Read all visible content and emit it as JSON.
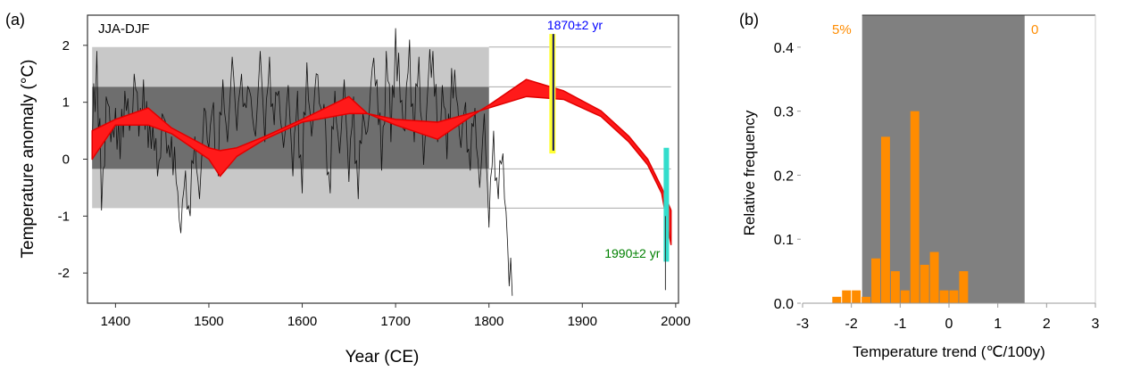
{
  "chart_data": [
    {
      "type": "line",
      "panel_label": "(a)",
      "title": "JJA-DJF",
      "xlabel": "Year (CE)",
      "ylabel": "Temperature anomaly (°C)",
      "xlim": [
        1370,
        2003
      ],
      "ylim": [
        -2.53,
        2.53
      ],
      "xticks": [
        1400,
        1500,
        1600,
        1700,
        1800,
        1900,
        2000
      ],
      "yticks": [
        -2,
        -1,
        0,
        1,
        2
      ],
      "shading": {
        "x_range": [
          1375,
          1800
        ],
        "outer": [
          -0.86,
          1.97
        ],
        "inner": [
          -0.17,
          1.27
        ],
        "line_end": 1995
      },
      "series_raw": {
        "name": "annual anomaly",
        "color": "#000000",
        "x_start": 1375,
        "x_step": 5,
        "values": [
          0.2,
          1.9,
          -0.9,
          1.1,
          0.3,
          0.9,
          0.0,
          1.2,
          0.5,
          1.5,
          0.4,
          1.4,
          0.2,
          0.6,
          -0.3,
          0.8,
          0.1,
          0.4,
          -0.4,
          -1.3,
          -0.2,
          -1.0,
          0.4,
          -0.7,
          0.9,
          0.2,
          1.0,
          -0.3,
          1.4,
          0.3,
          1.8,
          0.5,
          1.5,
          0.9,
          1.1,
          0.4,
          1.9,
          0.3,
          1.8,
          0.6,
          1.2,
          0.2,
          1.3,
          -0.3,
          1.2,
          -0.6,
          1.7,
          0.4,
          1.5,
          0.9,
          0.6,
          -0.6,
          1.2,
          0.1,
          1.4,
          -0.4,
          1.1,
          -0.7,
          0.8,
          0.5,
          1.6,
          1.4,
          -0.2,
          1.9,
          0.3,
          2.3,
          1.0,
          0.5,
          2.1,
          0.3,
          1.8,
          -0.1,
          1.4,
          1.9,
          0.3,
          1.3,
          0.0,
          1.6,
          1.1,
          0.2,
          1.0,
          -0.2,
          0.9,
          -0.5,
          0.8,
          -1.2,
          0.5,
          -0.7,
          0.1,
          -1.5,
          -2.4
        ]
      },
      "series_band": {
        "name": "smoothed fits",
        "color": "#ff0000",
        "x": [
          1375,
          1400,
          1435,
          1460,
          1500,
          1512,
          1530,
          1560,
          1600,
          1650,
          1670,
          1700,
          1745,
          1790,
          1800,
          1840,
          1880,
          1920,
          1950,
          1970,
          1985,
          1995
        ],
        "lower": [
          0.0,
          0.6,
          0.6,
          0.45,
          0.0,
          -0.3,
          0.05,
          0.35,
          0.65,
          0.8,
          0.8,
          0.6,
          0.35,
          0.85,
          0.9,
          1.1,
          1.05,
          0.75,
          0.3,
          -0.1,
          -0.6,
          -1.5
        ],
        "upper": [
          0.5,
          0.7,
          0.9,
          0.55,
          0.2,
          0.15,
          0.2,
          0.4,
          0.7,
          1.1,
          0.8,
          0.7,
          0.65,
          0.85,
          0.95,
          1.4,
          1.2,
          0.85,
          0.4,
          0.0,
          -0.5,
          -0.9
        ]
      },
      "annotations": [
        {
          "text": "1870±2 yr",
          "x": 1868,
          "y_range": [
            0.1,
            2.2
          ],
          "color": "#0000ff",
          "bar_color": "#ffff33"
        },
        {
          "text": "1990±2 yr",
          "x": 1990,
          "y_range": [
            -1.8,
            0.2
          ],
          "color": "#008000",
          "bar_color": "#33ddcc"
        }
      ]
    },
    {
      "type": "bar",
      "panel_label": "(b)",
      "xlabel": "Temperature trend (℃/100y)",
      "ylabel": "Relative frequency",
      "xlim": [
        -3,
        3
      ],
      "ylim": [
        0,
        0.45
      ],
      "xticks": [
        -3,
        -2,
        -1,
        0,
        1,
        2,
        3
      ],
      "yticks": [
        0.0,
        0.1,
        0.2,
        0.3,
        0.4
      ],
      "ytick_labels": [
        "0.0",
        "0.1",
        "0.2",
        "0.3",
        "0.4"
      ],
      "bar_width": 0.2,
      "bar_color": "#ff8c00",
      "x": [
        -2.3,
        -2.1,
        -1.9,
        -1.7,
        -1.5,
        -1.3,
        -1.1,
        -0.9,
        -0.7,
        -0.5,
        -0.3,
        -0.1,
        0.1,
        0.3
      ],
      "values": [
        0.01,
        0.02,
        0.02,
        0.01,
        0.07,
        0.26,
        0.05,
        0.02,
        0.3,
        0.06,
        0.08,
        0.02,
        0.02,
        0.05
      ],
      "shaded_range": [
        -1.78,
        1.55
      ],
      "annotations": [
        {
          "text": "5%",
          "color": "#ff8c00"
        },
        {
          "text": "0",
          "color": "#ff8c00"
        }
      ]
    }
  ]
}
